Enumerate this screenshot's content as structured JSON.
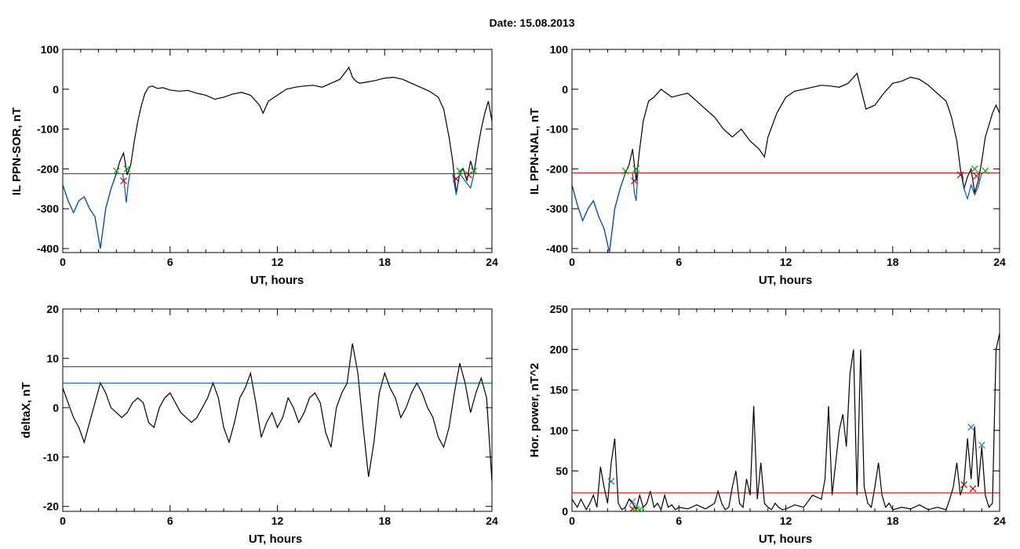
{
  "title": "Date:  15.08.2013",
  "chart_data": [
    {
      "type": "line",
      "id": "p1",
      "xlabel": "UT, hours",
      "ylabel": "IL PPN-SOR, nT",
      "xlim": [
        0,
        24
      ],
      "ylim": [
        -410,
        100
      ],
      "xticks": [
        0,
        6,
        12,
        18,
        24
      ],
      "yticks": [
        100,
        0,
        -100,
        -200,
        -300,
        -400
      ],
      "threshold": -212,
      "series": [
        {
          "color": "#000000",
          "x": [
            0,
            0.3,
            0.6,
            0.9,
            1.2,
            1.5,
            1.8,
            2.1,
            2.4,
            2.7,
            3.0,
            3.2,
            3.4,
            3.6,
            3.8,
            4.0,
            4.2,
            4.4,
            4.6,
            4.8,
            5.0,
            5.3,
            5.6,
            6.0,
            6.5,
            7.0,
            7.5,
            8.0,
            8.5,
            9.0,
            9.5,
            10.0,
            10.5,
            11.0,
            11.2,
            11.5,
            12.0,
            12.5,
            13.0,
            13.5,
            14.0,
            14.5,
            15.0,
            15.5,
            16.0,
            16.2,
            16.4,
            16.6,
            17.0,
            17.5,
            18.0,
            18.5,
            19.0,
            19.5,
            20.0,
            20.5,
            21.0,
            21.3,
            21.6,
            21.8,
            22.0,
            22.2,
            22.4,
            22.6,
            22.8,
            23.0,
            23.2,
            23.4,
            23.6,
            23.8,
            24.0
          ],
          "y": [
            -240,
            -280,
            -310,
            -280,
            -270,
            -300,
            -320,
            -400,
            -300,
            -250,
            -210,
            -180,
            -160,
            -215,
            -190,
            -130,
            -80,
            -40,
            -10,
            5,
            8,
            2,
            4,
            -2,
            -5,
            -3,
            -10,
            -15,
            -25,
            -20,
            -12,
            -8,
            -15,
            -40,
            -60,
            -30,
            -15,
            0,
            5,
            8,
            10,
            5,
            15,
            25,
            55,
            30,
            20,
            15,
            18,
            22,
            28,
            30,
            25,
            15,
            5,
            -5,
            -20,
            -50,
            -120,
            -180,
            -260,
            -210,
            -200,
            -230,
            -180,
            -210,
            -150,
            -100,
            -60,
            -30,
            -80
          ]
        },
        {
          "color": "#0055cc",
          "x": [
            0,
            0.3,
            0.6,
            0.9,
            1.2,
            1.5,
            1.8,
            2.1,
            2.4,
            2.7,
            3.0
          ],
          "y": [
            -240,
            -280,
            -310,
            -280,
            -270,
            -300,
            -320,
            -400,
            -300,
            -250,
            -212
          ]
        },
        {
          "color": "#0055cc",
          "x": [
            3.35,
            3.45,
            3.55,
            3.65,
            3.75
          ],
          "y": [
            -212,
            -240,
            -285,
            -240,
            -212
          ]
        },
        {
          "color": "#0055cc",
          "x": [
            21.8,
            22.0,
            22.2,
            22.5,
            22.8,
            23.0
          ],
          "y": [
            -212,
            -265,
            -212,
            -230,
            -248,
            -212
          ]
        }
      ],
      "markers": [
        {
          "color": "#00aa00",
          "x": [
            3.0,
            3.6,
            22.2,
            23.0
          ],
          "y": [
            -205,
            -200,
            -205,
            -205
          ]
        },
        {
          "color": "#cc0000",
          "x": [
            3.4,
            22.0,
            22.7
          ],
          "y": [
            -230,
            -225,
            -215
          ]
        }
      ]
    },
    {
      "type": "line",
      "id": "p2",
      "xlabel": "UT, hours",
      "ylabel": "IL PPN-NAL, nT",
      "xlim": [
        0,
        24
      ],
      "ylim": [
        -410,
        100
      ],
      "xticks": [
        0,
        6,
        12,
        18,
        24
      ],
      "yticks": [
        100,
        0,
        -100,
        -200,
        -300,
        -400
      ],
      "threshold": -210,
      "series": [
        {
          "color": "#000000",
          "x": [
            0,
            0.3,
            0.6,
            0.9,
            1.2,
            1.5,
            1.8,
            2.1,
            2.4,
            2.7,
            3.0,
            3.2,
            3.4,
            3.6,
            3.8,
            4.0,
            4.3,
            4.6,
            5.0,
            5.3,
            5.6,
            6.0,
            6.5,
            7.0,
            7.5,
            8.0,
            8.5,
            9.0,
            9.5,
            10.0,
            10.5,
            10.8,
            11.0,
            11.5,
            12.0,
            12.5,
            13.0,
            13.5,
            14.0,
            14.5,
            15.0,
            15.5,
            16.0,
            16.5,
            17.0,
            17.5,
            18.0,
            18.5,
            19.0,
            19.5,
            20.0,
            20.5,
            21.0,
            21.3,
            21.6,
            21.8,
            22.0,
            22.2,
            22.4,
            22.6,
            22.8,
            23.0,
            23.2,
            23.4,
            23.6,
            23.8,
            24.0
          ],
          "y": [
            -240,
            -290,
            -330,
            -300,
            -280,
            -320,
            -350,
            -410,
            -300,
            -250,
            -210,
            -190,
            -150,
            -230,
            -150,
            -80,
            -30,
            -20,
            0,
            -10,
            -20,
            -15,
            -10,
            -30,
            -50,
            -70,
            -100,
            -120,
            -100,
            -130,
            -150,
            -170,
            -120,
            -60,
            -20,
            -5,
            0,
            5,
            10,
            8,
            5,
            15,
            40,
            -50,
            -40,
            -10,
            15,
            20,
            30,
            25,
            10,
            -10,
            -30,
            -70,
            -130,
            -200,
            -250,
            -220,
            -200,
            -260,
            -230,
            -180,
            -120,
            -90,
            -60,
            -40,
            -60
          ]
        },
        {
          "color": "#0055cc",
          "x": [
            0,
            0.3,
            0.6,
            0.9,
            1.2,
            1.5,
            1.8,
            2.1,
            2.4,
            2.7,
            3.0
          ],
          "y": [
            -240,
            -290,
            -330,
            -300,
            -280,
            -320,
            -350,
            -410,
            -300,
            -250,
            -210
          ]
        },
        {
          "color": "#0055cc",
          "x": [
            3.4,
            3.5,
            3.6,
            3.7
          ],
          "y": [
            -210,
            -260,
            -280,
            -210
          ]
        },
        {
          "color": "#0055cc",
          "x": [
            21.9,
            22.0,
            22.2,
            22.4,
            22.6,
            22.8,
            23.0
          ],
          "y": [
            -210,
            -250,
            -275,
            -240,
            -265,
            -245,
            -210
          ]
        }
      ],
      "markers": [
        {
          "color": "#00aa00",
          "x": [
            3.0,
            3.6,
            22.6,
            23.2
          ],
          "y": [
            -205,
            -200,
            -200,
            -205
          ]
        },
        {
          "color": "#cc0000",
          "x": [
            3.5,
            21.8,
            22.7
          ],
          "y": [
            -230,
            -215,
            -218
          ]
        }
      ]
    },
    {
      "type": "line",
      "id": "p3",
      "xlabel": "UT, hours",
      "ylabel": "deltaX, nT",
      "xlim": [
        0,
        24
      ],
      "ylim": [
        -21,
        20
      ],
      "xticks": [
        0,
        6,
        12,
        18,
        24
      ],
      "yticks": [
        20,
        10,
        0,
        -10,
        -20
      ],
      "thresholds": [
        {
          "value": 8.3,
          "color": "#cc0000"
        },
        {
          "value": 5,
          "color": "#0055cc"
        }
      ],
      "series": [
        {
          "color": "#000000",
          "x": [
            0,
            0.3,
            0.6,
            0.9,
            1.2,
            1.5,
            1.8,
            2.1,
            2.4,
            2.7,
            3.0,
            3.3,
            3.6,
            3.9,
            4.2,
            4.5,
            4.8,
            5.1,
            5.4,
            5.7,
            6.0,
            6.3,
            6.6,
            6.9,
            7.2,
            7.5,
            7.8,
            8.1,
            8.4,
            8.7,
            9.0,
            9.3,
            9.6,
            9.9,
            10.2,
            10.5,
            10.8,
            11.1,
            11.4,
            11.7,
            12.0,
            12.3,
            12.6,
            12.9,
            13.2,
            13.5,
            13.8,
            14.1,
            14.4,
            14.7,
            15.0,
            15.3,
            15.6,
            15.9,
            16.2,
            16.5,
            16.8,
            17.1,
            17.4,
            17.7,
            18.0,
            18.3,
            18.6,
            18.9,
            19.2,
            19.5,
            19.8,
            20.1,
            20.4,
            20.7,
            21.0,
            21.3,
            21.6,
            21.9,
            22.2,
            22.5,
            22.8,
            23.1,
            23.4,
            23.7,
            24.0
          ],
          "y": [
            4,
            1,
            -2,
            -4,
            -7,
            -3,
            1,
            5,
            3,
            0,
            -1,
            -2,
            -1,
            1,
            2,
            1,
            -3,
            -4,
            0,
            2,
            3,
            1,
            -1,
            -2,
            -3,
            -2,
            0,
            2,
            5,
            2,
            -4,
            -7,
            -3,
            2,
            4,
            7,
            1,
            -6,
            -3,
            -1,
            -4,
            -2,
            2,
            0,
            -3,
            -1,
            2,
            3,
            1,
            -5,
            -8,
            0,
            3,
            5,
            13,
            7,
            -4,
            -14,
            -7,
            3,
            7,
            4,
            2,
            -2,
            0,
            3,
            5,
            3,
            0,
            -2,
            -6,
            -8,
            -4,
            3,
            9,
            5,
            -1,
            3,
            6,
            2,
            -15
          ]
        }
      ]
    },
    {
      "type": "line",
      "id": "p4",
      "xlabel": "UT, hours",
      "ylabel": "Hor. power, nT^2",
      "xlim": [
        0,
        24
      ],
      "ylim": [
        0,
        250
      ],
      "xticks": [
        0,
        6,
        12,
        18,
        24
      ],
      "yticks": [
        250,
        200,
        150,
        100,
        50,
        0
      ],
      "threshold": 23,
      "series": [
        {
          "color": "#000000",
          "x": [
            0,
            0.3,
            0.5,
            0.8,
            1.0,
            1.2,
            1.4,
            1.6,
            1.8,
            2.0,
            2.2,
            2.4,
            2.6,
            2.8,
            3.0,
            3.2,
            3.4,
            3.6,
            3.8,
            4.0,
            4.2,
            4.4,
            4.6,
            4.8,
            5.0,
            5.2,
            5.4,
            5.6,
            5.8,
            6.0,
            6.5,
            7.0,
            7.5,
            8.0,
            8.2,
            8.4,
            8.6,
            8.8,
            9.0,
            9.2,
            9.4,
            9.6,
            9.8,
            10.0,
            10.2,
            10.4,
            10.6,
            10.8,
            11.0,
            11.2,
            11.4,
            11.6,
            11.8,
            12.0,
            12.5,
            13.0,
            13.5,
            14.0,
            14.2,
            14.4,
            14.6,
            14.8,
            15.0,
            15.2,
            15.4,
            15.6,
            15.8,
            16.0,
            16.2,
            16.4,
            16.6,
            16.8,
            17.0,
            17.2,
            17.4,
            17.6,
            17.8,
            18.0,
            18.5,
            19.0,
            19.5,
            20.0,
            20.5,
            21.0,
            21.2,
            21.4,
            21.6,
            21.8,
            22.0,
            22.2,
            22.4,
            22.6,
            22.8,
            23.0,
            23.2,
            23.4,
            23.6,
            23.8,
            24.0
          ],
          "y": [
            15,
            5,
            15,
            2,
            10,
            20,
            5,
            55,
            30,
            10,
            60,
            90,
            10,
            2,
            5,
            15,
            10,
            3,
            20,
            5,
            10,
            25,
            5,
            10,
            2,
            20,
            5,
            8,
            2,
            5,
            3,
            8,
            3,
            10,
            25,
            10,
            2,
            5,
            30,
            50,
            10,
            5,
            40,
            20,
            130,
            15,
            60,
            10,
            5,
            2,
            10,
            5,
            2,
            3,
            8,
            5,
            20,
            15,
            40,
            130,
            20,
            60,
            100,
            120,
            80,
            170,
            200,
            20,
            200,
            30,
            10,
            5,
            30,
            60,
            20,
            5,
            10,
            2,
            5,
            3,
            8,
            2,
            5,
            2,
            15,
            30,
            60,
            20,
            35,
            90,
            40,
            105,
            30,
            80,
            20,
            5,
            10,
            200,
            220
          ]
        }
      ],
      "markers": [
        {
          "color": "#1f77b4",
          "x": [
            2.2,
            3.4,
            22.4,
            23.0
          ],
          "y": [
            37,
            12,
            104,
            82
          ]
        },
        {
          "color": "#cc0000",
          "x": [
            3.4,
            22.0,
            22.5
          ],
          "y": [
            3,
            33,
            28
          ]
        },
        {
          "color": "#00aa00",
          "x": [
            3.6,
            3.8
          ],
          "y": [
            2,
            2
          ]
        }
      ]
    }
  ]
}
